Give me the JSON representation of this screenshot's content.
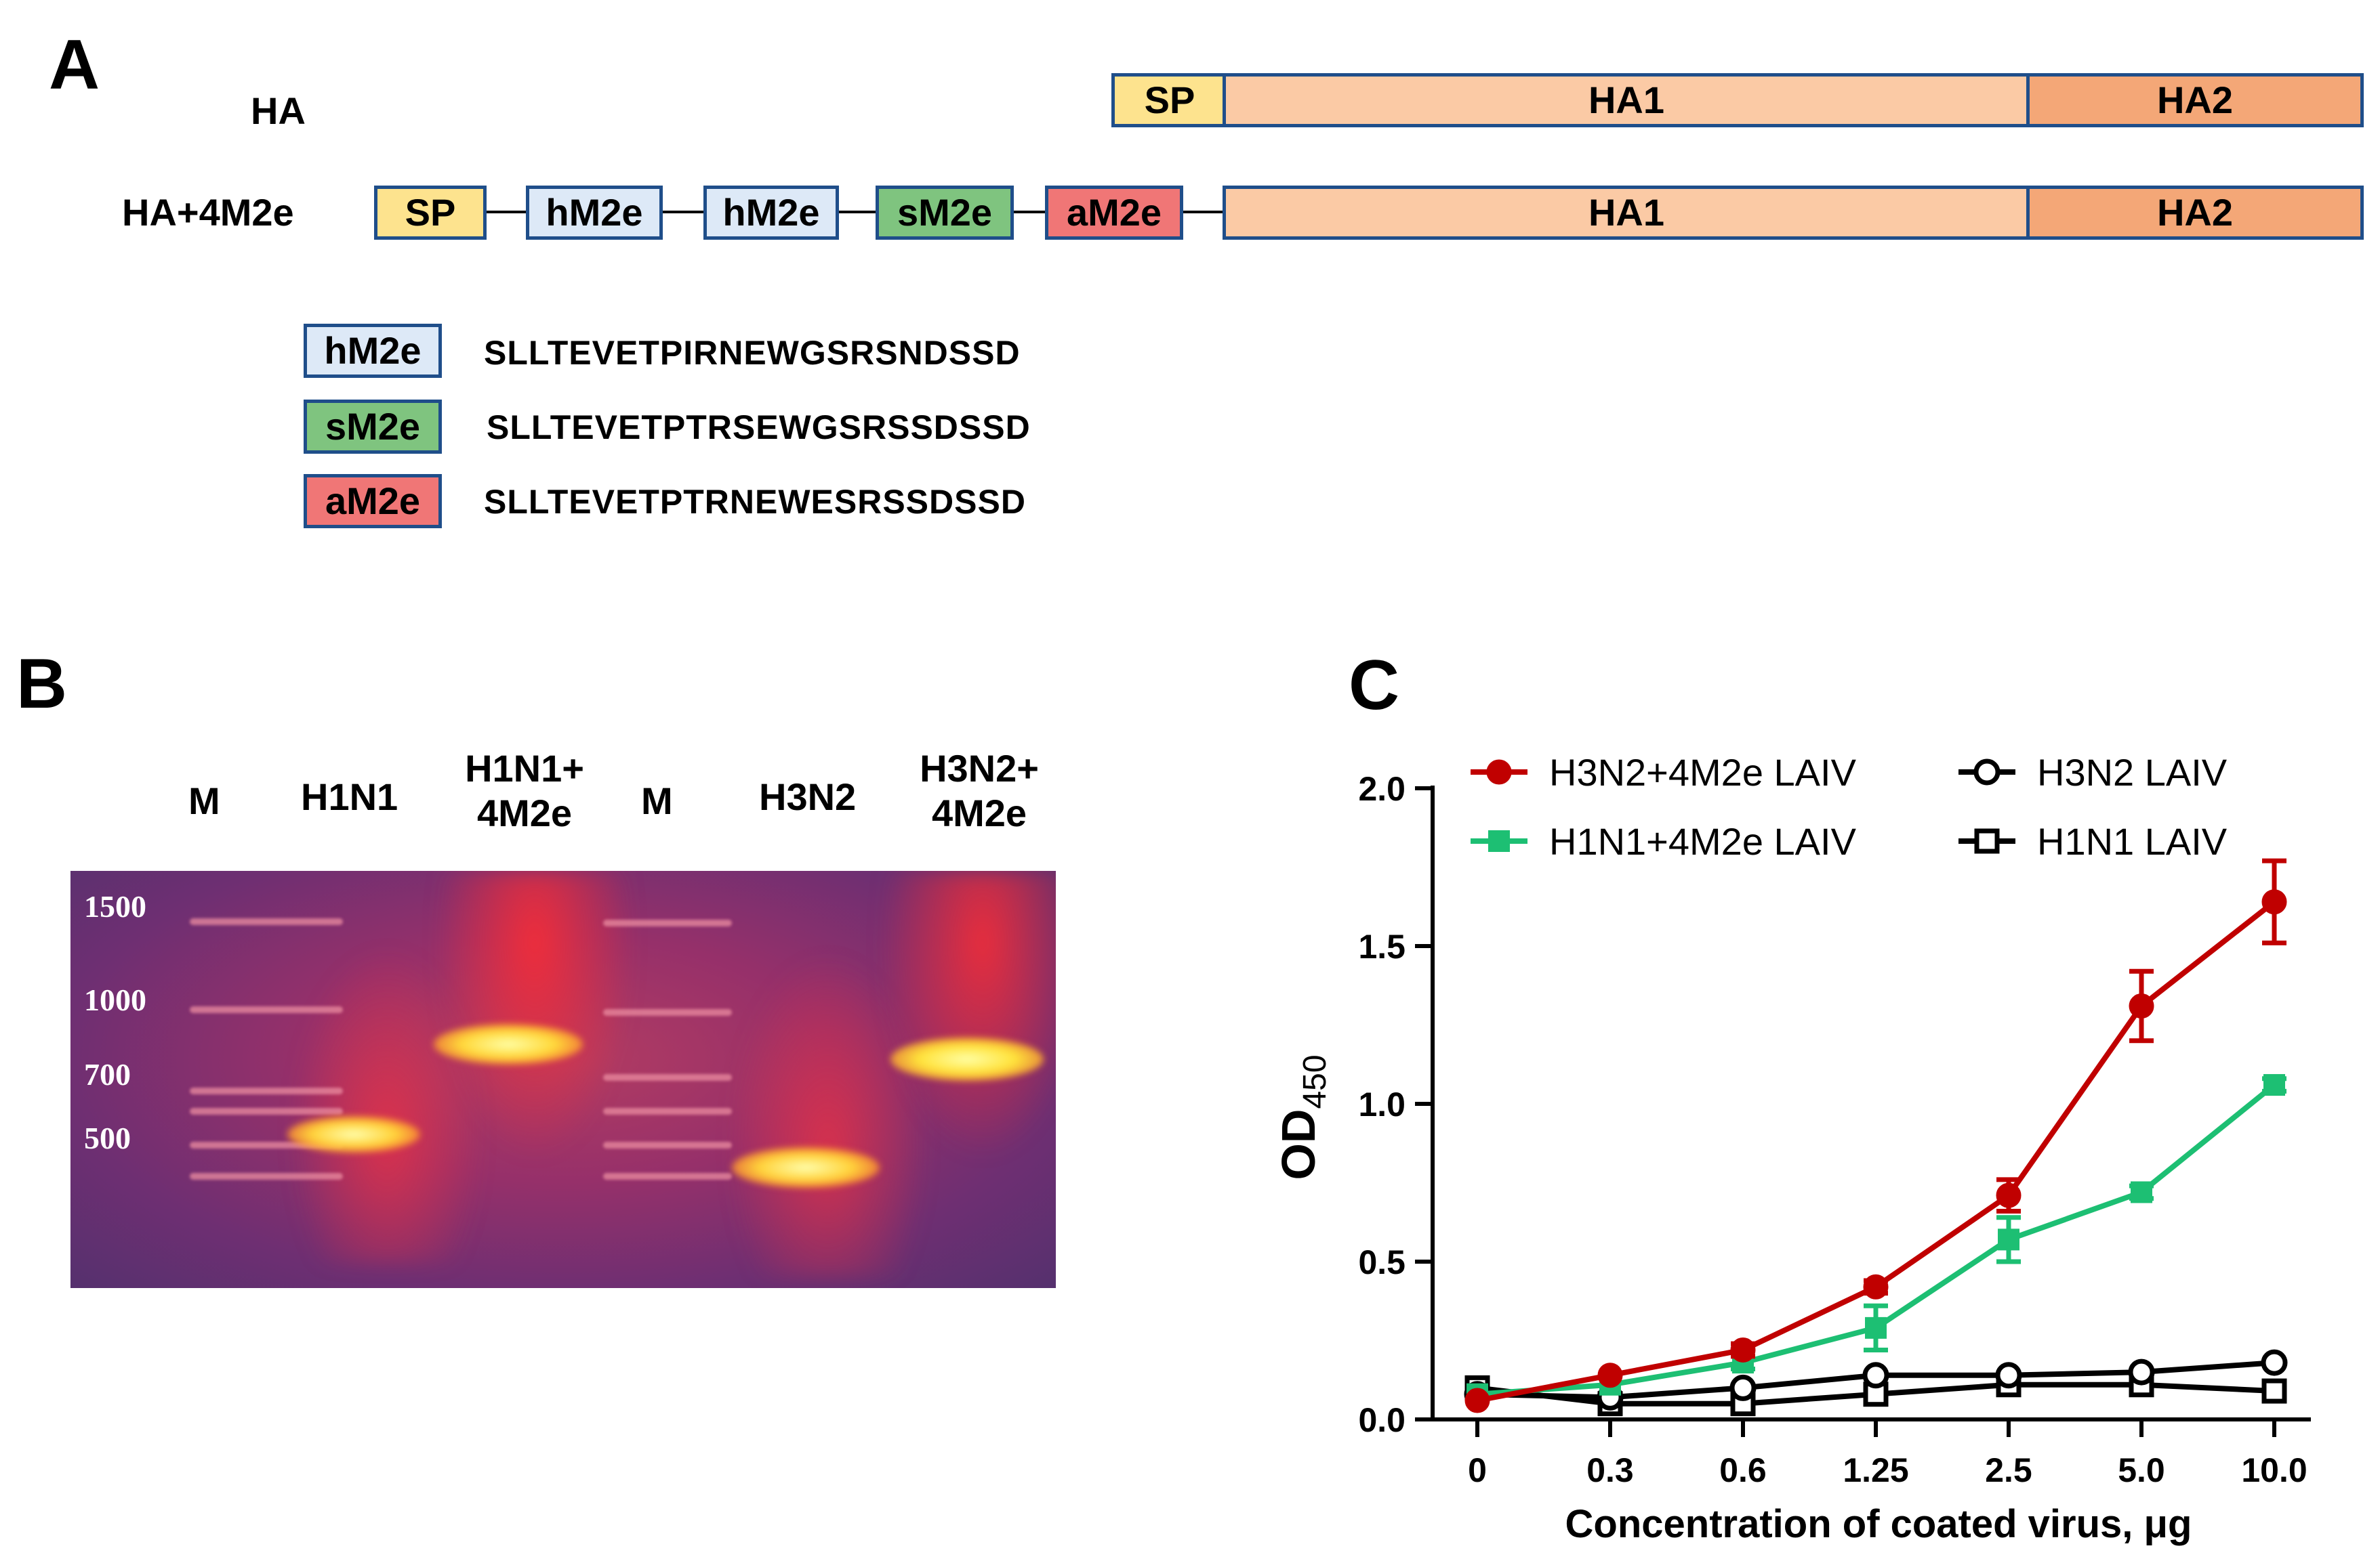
{
  "panels": {
    "a": "A",
    "b": "B",
    "c": "C"
  },
  "panel_a": {
    "constructs": [
      {
        "label": "HA",
        "segments": [
          "SP",
          "HA1",
          "HA2"
        ]
      },
      {
        "label": "HA+4M2e",
        "segments": [
          "SP",
          "hM2e",
          "hM2e",
          "sM2e",
          "aM2e",
          "HA1",
          "HA2"
        ]
      }
    ],
    "legend": [
      {
        "name": "hM2e",
        "sequence": "SLLTEVETPIRNEWGSRSNDSSD",
        "color": "#dde9f7"
      },
      {
        "name": "sM2e",
        "sequence": "SLLTEVETPTRSEWGSRSSDSSD",
        "color": "#7fc47f"
      },
      {
        "name": "aM2e",
        "sequence": "SLLTEVETPTRNEWESRSSDSSD",
        "color": "#f07676"
      }
    ]
  },
  "panel_b": {
    "lanes": [
      {
        "label": "M"
      },
      {
        "label": "H1N1"
      },
      {
        "label": "H1N1+",
        "label2": "4M2e"
      },
      {
        "label": "M"
      },
      {
        "label": "H3N2"
      },
      {
        "label": "H3N2+",
        "label2": "4M2e"
      }
    ],
    "markers": [
      "1500",
      "1000",
      "700",
      "500"
    ]
  },
  "chart_data": {
    "type": "line",
    "title": "",
    "xlabel": "Concentration of coated virus, μg",
    "ylabel": "OD",
    "ylabel_sub": "450",
    "categories": [
      "0",
      "0.3",
      "0.6",
      "1.25",
      "2.5",
      "5.0",
      "10.0"
    ],
    "ylim": [
      0,
      2.0
    ],
    "yticks": [
      "0.0",
      "0.5",
      "1.0",
      "1.5",
      "2.0"
    ],
    "legend": "top-left",
    "grid": false,
    "series": [
      {
        "name": "H3N2+4M2e LAIV",
        "color": "#c00000",
        "marker": "circle-filled",
        "values": [
          0.06,
          0.14,
          0.22,
          0.42,
          0.71,
          1.31,
          1.64
        ],
        "errors": [
          0.01,
          0.01,
          0.02,
          0.02,
          0.05,
          0.11,
          0.13
        ]
      },
      {
        "name": "H1N1+4M2e LAIV",
        "color": "#1dbf73",
        "marker": "square-filled",
        "values": [
          0.08,
          0.11,
          0.18,
          0.29,
          0.57,
          0.72,
          1.06
        ],
        "errors": [
          0.01,
          0.01,
          0.02,
          0.07,
          0.07,
          0.02,
          0.02
        ]
      },
      {
        "name": "H3N2 LAIV",
        "color": "#000000",
        "marker": "circle-open",
        "values": [
          0.08,
          0.07,
          0.1,
          0.14,
          0.14,
          0.15,
          0.18
        ],
        "errors": [
          0.01,
          0.01,
          0.01,
          0.01,
          0.01,
          0.01,
          0.01
        ]
      },
      {
        "name": "H1N1 LAIV",
        "color": "#000000",
        "marker": "square-open",
        "values": [
          0.1,
          0.05,
          0.05,
          0.08,
          0.11,
          0.11,
          0.09
        ],
        "errors": [
          0.01,
          0.01,
          0.01,
          0.01,
          0.01,
          0.01,
          0.01
        ]
      }
    ]
  }
}
